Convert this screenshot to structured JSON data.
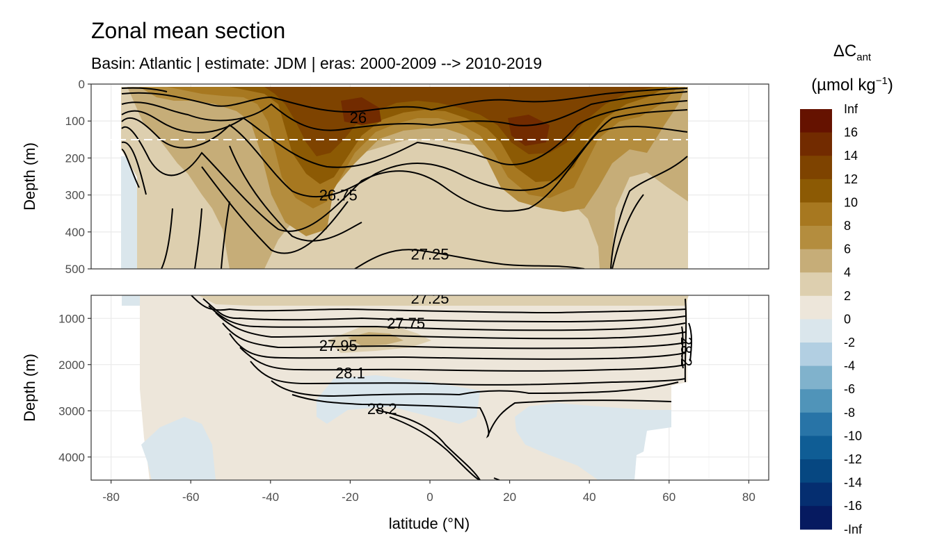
{
  "chart_data": {
    "type": "heatmap",
    "title": "Zonal mean section",
    "subtitle": "Basin: Atlantic | estimate: JDM  | eras: 2000-2009 --> 2010-2019",
    "xlabel": "latitude (°N)",
    "ylabel_top": "Depth (m)",
    "ylabel_bottom": "Depth (m)",
    "xlim": [
      -85,
      85
    ],
    "x_ticks": [
      -80,
      -60,
      -40,
      -20,
      0,
      20,
      40,
      60,
      80
    ],
    "panels": [
      {
        "name": "upper",
        "ylim": [
          500,
          0
        ],
        "y_ticks": [
          0,
          100,
          200,
          300,
          400,
          500
        ]
      },
      {
        "name": "lower",
        "ylim": [
          4500,
          500
        ],
        "y_ticks": [
          1000,
          2000,
          3000,
          4000
        ]
      }
    ],
    "reference_line_depth": 150,
    "legend": {
      "title": "ΔC",
      "title_sub": "ant",
      "units_prefix": "(µmol kg",
      "units_sup": "−1",
      "units_suffix": ")",
      "labels": [
        "Inf",
        "16",
        "14",
        "12",
        "10",
        "8",
        "6",
        "4",
        "2",
        "0",
        "-2",
        "-4",
        "-6",
        "-8",
        "-10",
        "-12",
        "-14",
        "-16",
        "-Inf"
      ],
      "colors": [
        "#651200",
        "#722b00",
        "#7e4300",
        "#8c5a04",
        "#a77820",
        "#b48d3e",
        "#c6ad78",
        "#ddcfaf",
        "#ede6da",
        "#dae6ec",
        "#b2cfe2",
        "#80b2cc",
        "#5094b9",
        "#2874a7",
        "#0f5d95",
        "#064781",
        "#052e70",
        "#061a60"
      ]
    },
    "isopycnals": [
      {
        "label": "26",
        "lat": -18,
        "depth": 90
      },
      {
        "label": "26.75",
        "lat": -23,
        "depth": 300
      },
      {
        "label": "27.25",
        "lat": 0,
        "depth": 460
      },
      {
        "label": "27.25",
        "lat": 0,
        "depth": 560
      },
      {
        "label": "27.75",
        "lat": -6,
        "depth": 1100
      },
      {
        "label": "27.95",
        "lat": -23,
        "depth": 1580
      },
      {
        "label": "28.1",
        "lat": -20,
        "depth": 2180
      },
      {
        "label": "28.2",
        "lat": -12,
        "depth": 2950
      },
      {
        "label": "28.2",
        "lat": 63,
        "depth": 1600
      }
    ]
  }
}
